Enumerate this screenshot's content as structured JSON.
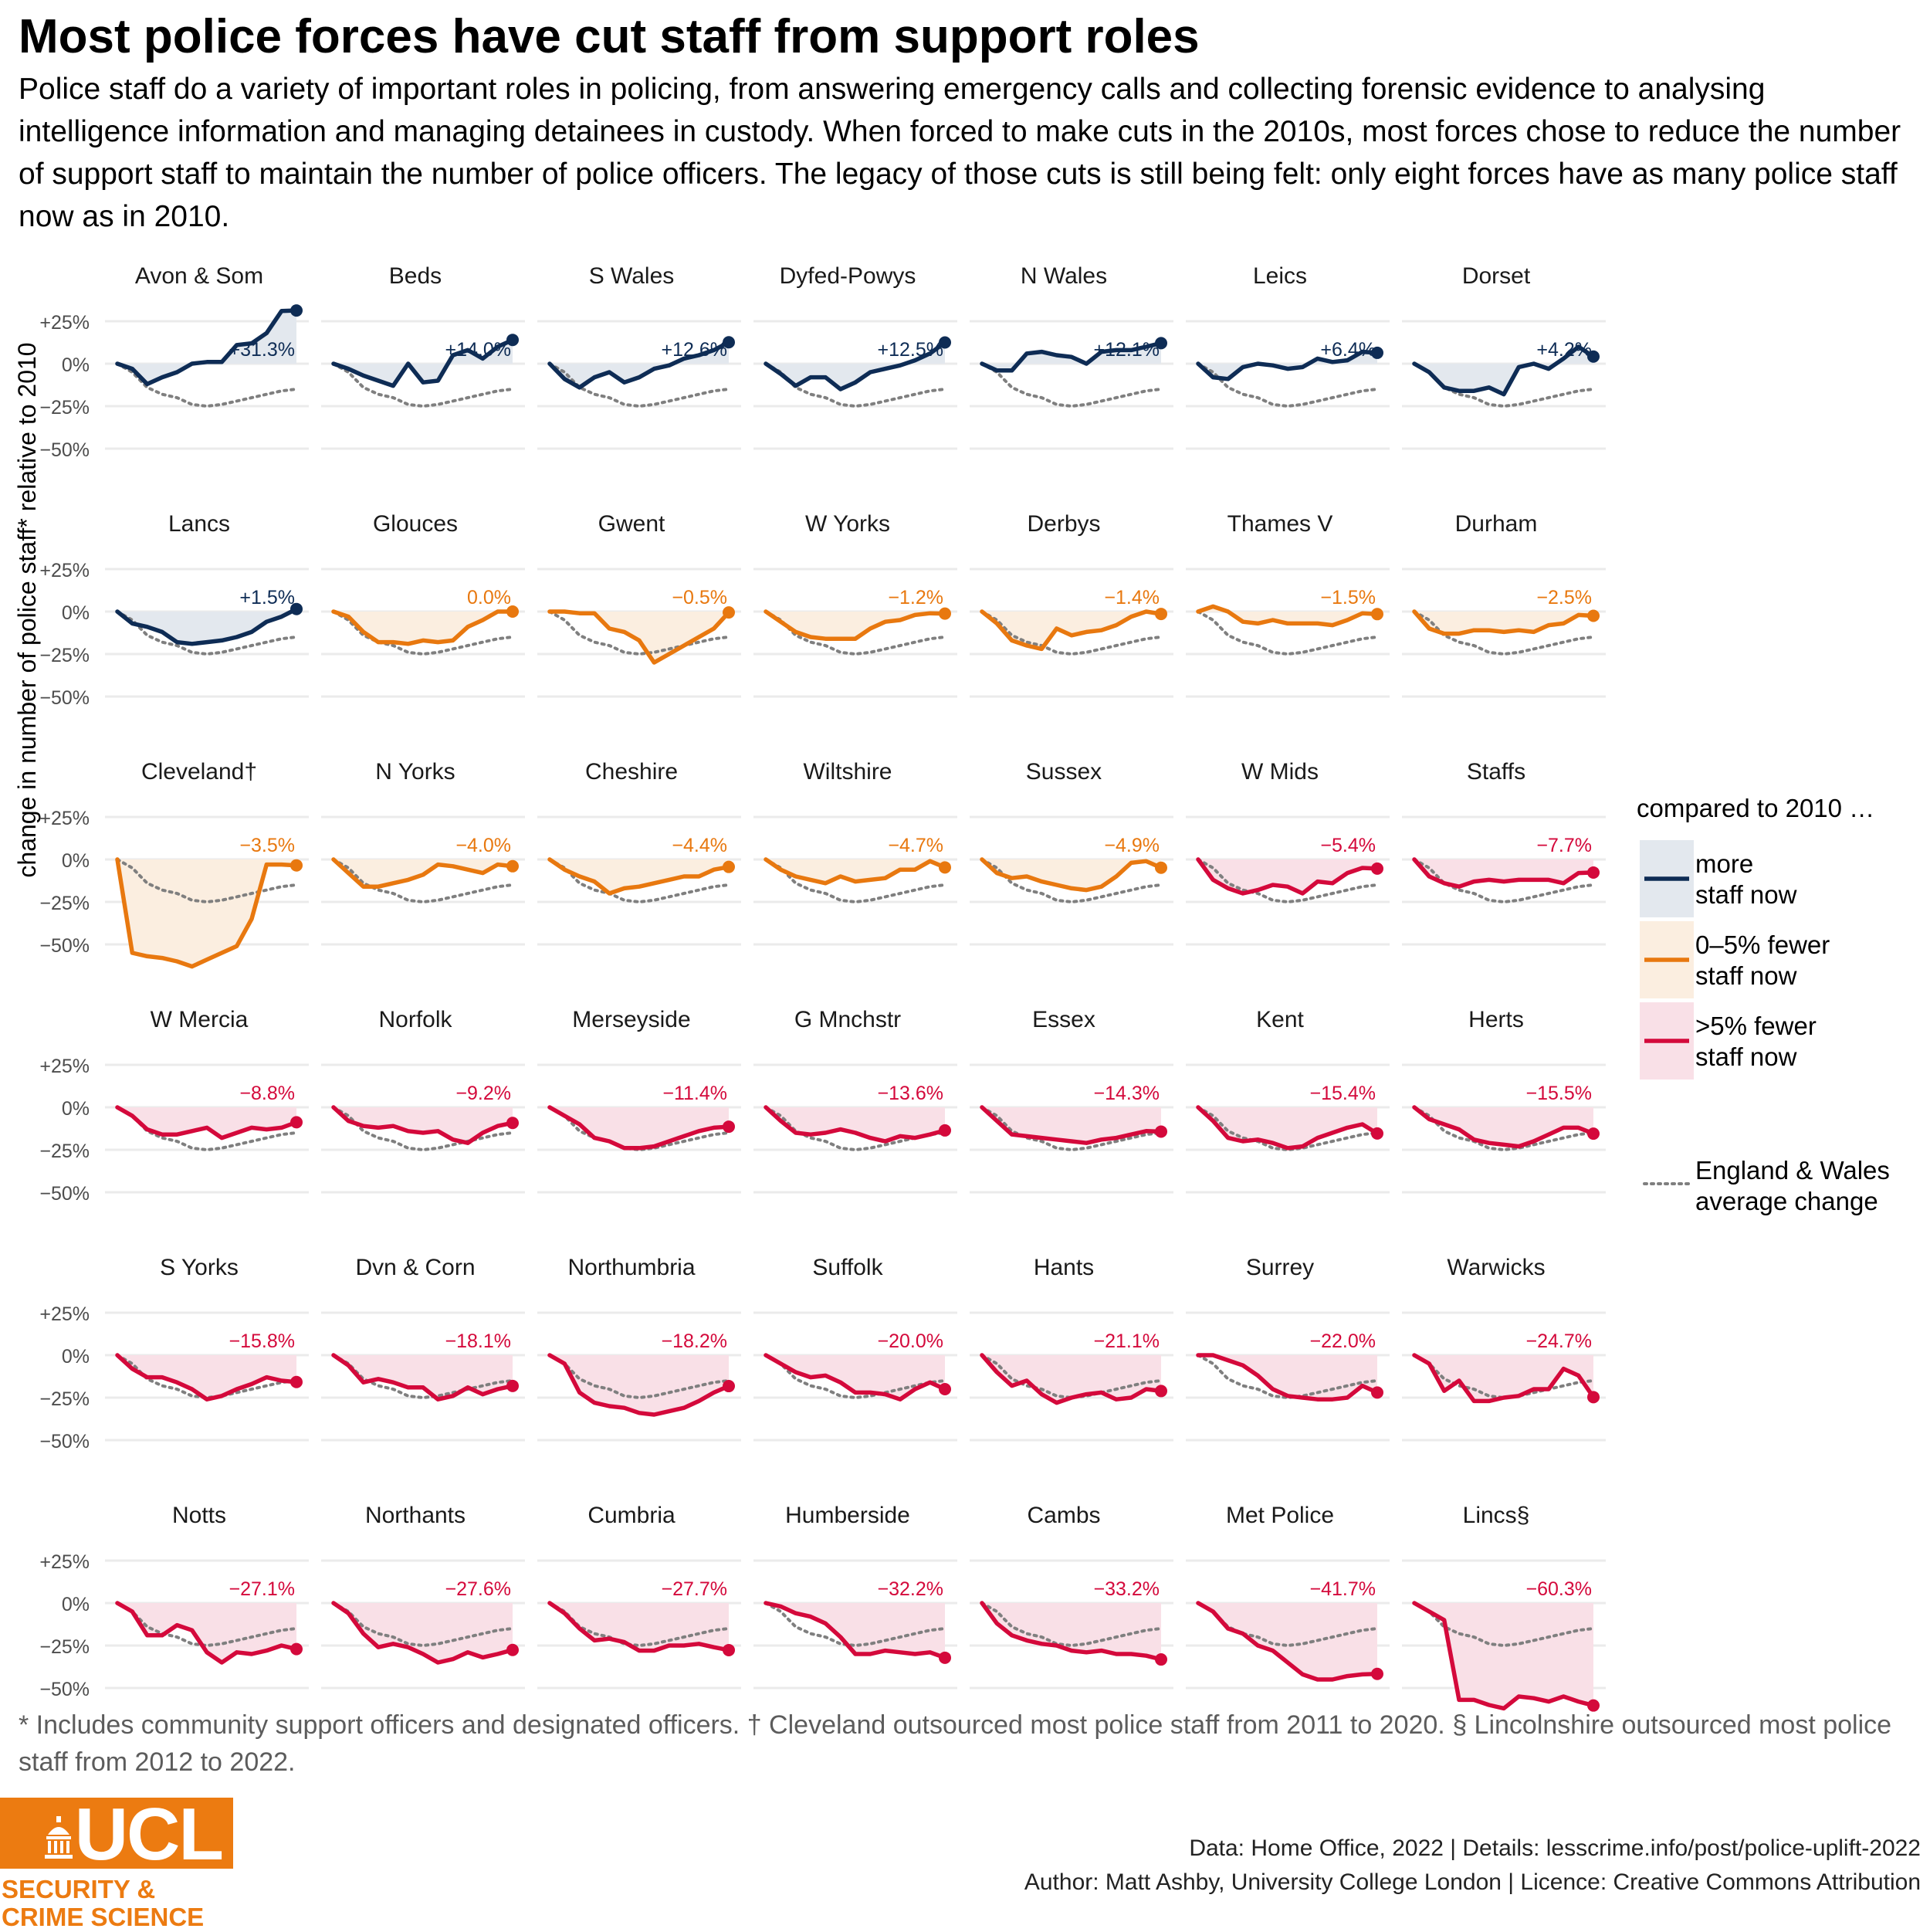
{
  "title": "Most police forces have cut staff from support roles",
  "subtitle": "Police staff do a variety of important roles in policing, from answering emergency calls and collecting forensic evidence to analysing intelligence information and managing detainees in custody. When forced to make cuts in the 2010s, most forces chose to reduce the number of support staff to maintain the number of police officers. The legacy of those cuts is still being felt: only eight forces have as many police staff now as in 2010.",
  "footnote": "* Includes community support officers and designated officers. † Cleveland outsourced most police staff from 2011 to 2020. § Lincolnshire outsourced most police staff from 2012 to 2022.",
  "credits": {
    "line1": "Data: Home Office, 2022 | Details: lesscrime.info/post/police-uplift-2022",
    "line2": "Author: Matt Ashby, University College London | Licence: Creative Commons Attribution"
  },
  "logo": {
    "word": "UCL",
    "line1": "SECURITY &",
    "line2": "CRIME SCIENCE",
    "dome_icon": "ucl-portico-icon"
  },
  "colors": {
    "more": "#0e2c55",
    "more_fill": "#e3e8ee",
    "mid": "#e8780f",
    "mid_fill": "#fbeee0",
    "less": "#d4093b",
    "less_fill": "#f9e0e7",
    "average": "#7f7f7f",
    "grid": "#ebebeb"
  },
  "chart_data": {
    "type": "line",
    "facets": "small multiples, 7 columns x 6 rows",
    "x": [
      "2010",
      "2011",
      "2012",
      "2013",
      "2014",
      "2015",
      "2016",
      "2017",
      "2018",
      "2019",
      "2020",
      "2021",
      "2022"
    ],
    "ylabel": "change in number of police staff* relative to 2010",
    "ylim": [
      -60,
      35
    ],
    "y_ticks": [
      25,
      0,
      -25,
      -50
    ],
    "y_tick_labels": [
      "+25%",
      "0%",
      "−25%",
      "−50%"
    ],
    "grid": true,
    "average": {
      "name": "England & Wales average change",
      "values": [
        0,
        -5,
        -14,
        -18,
        -20,
        -24,
        -25,
        -24,
        -22,
        -20,
        -18,
        -16,
        -15
      ]
    },
    "legend": {
      "title": "compared to 2010 …",
      "position": "right",
      "entries": [
        {
          "key": "more",
          "label_line1": "more",
          "label_line2": "staff now"
        },
        {
          "key": "mid",
          "label_line1": "0–5% fewer",
          "label_line2": "staff now"
        },
        {
          "key": "less",
          "label_line1": ">5% fewer",
          "label_line2": "staff now"
        }
      ],
      "average_label_line1": "England & Wales",
      "average_label_line2": "average change"
    },
    "series": [
      {
        "name": "Avon & Som",
        "group": "more",
        "label": "+31.3%",
        "values": [
          0,
          -3,
          -12,
          -8,
          -5,
          0,
          1,
          1,
          11,
          12,
          18,
          31,
          31.3
        ]
      },
      {
        "name": "Beds",
        "group": "more",
        "label": "+14.0%",
        "values": [
          0,
          -3,
          -7,
          -10,
          -13,
          0,
          -11,
          -10,
          5,
          8,
          3,
          10,
          14
        ]
      },
      {
        "name": "S Wales",
        "group": "more",
        "label": "+12.6%",
        "values": [
          0,
          -9,
          -14,
          -8,
          -5,
          -11,
          -8,
          -3,
          -1,
          3,
          5,
          8,
          12.6
        ]
      },
      {
        "name": "Dyfed-Powys",
        "group": "more",
        "label": "+12.5%",
        "values": [
          0,
          -6,
          -13,
          -8,
          -8,
          -15,
          -11,
          -5,
          -3,
          -1,
          2,
          6,
          12.5
        ]
      },
      {
        "name": "N Wales",
        "group": "more",
        "label": "+12.1%",
        "values": [
          0,
          -4,
          -4,
          6,
          7,
          5,
          4,
          0,
          7,
          8,
          8,
          10,
          12.1
        ]
      },
      {
        "name": "Leics",
        "group": "more",
        "label": "+6.4%",
        "values": [
          0,
          -8,
          -9,
          -2,
          0,
          -1,
          -3,
          -2,
          3,
          1,
          2,
          7,
          6.4
        ]
      },
      {
        "name": "Dorset",
        "group": "more",
        "label": "+4.2%",
        "values": [
          0,
          -5,
          -14,
          -16,
          -16,
          -14,
          -18,
          -2,
          0,
          -3,
          3,
          10,
          4.2
        ]
      },
      {
        "name": "Lancs",
        "group": "more",
        "label": "+1.5%",
        "values": [
          0,
          -7,
          -9,
          -12,
          -18,
          -19,
          -18,
          -17,
          -15,
          -12,
          -6,
          -3,
          1.5
        ]
      },
      {
        "name": "Glouces",
        "group": "mid",
        "label": "0.0%",
        "values": [
          0,
          -3,
          -12,
          -18,
          -18,
          -19,
          -17,
          -18,
          -17,
          -9,
          -5,
          0,
          0
        ]
      },
      {
        "name": "Gwent",
        "group": "mid",
        "label": "−0.5%",
        "values": [
          0,
          0,
          -1,
          -1,
          -10,
          -12,
          -17,
          -30,
          -25,
          -20,
          -15,
          -10,
          -0.5
        ]
      },
      {
        "name": "W Yorks",
        "group": "mid",
        "label": "−1.2%",
        "values": [
          0,
          -6,
          -12,
          -15,
          -16,
          -16,
          -16,
          -10,
          -6,
          -5,
          -2,
          -1,
          -1.2
        ]
      },
      {
        "name": "Derbys",
        "group": "mid",
        "label": "−1.4%",
        "values": [
          0,
          -7,
          -17,
          -20,
          -22,
          -10,
          -14,
          -12,
          -11,
          -8,
          -3,
          0,
          -1.4
        ]
      },
      {
        "name": "Thames V",
        "group": "mid",
        "label": "−1.5%",
        "values": [
          0,
          3,
          0,
          -6,
          -7,
          -5,
          -7,
          -7,
          -7,
          -8,
          -5,
          -1,
          -1.5
        ]
      },
      {
        "name": "Durham",
        "group": "mid",
        "label": "−2.5%",
        "values": [
          0,
          -10,
          -13,
          -13,
          -11,
          -11,
          -12,
          -11,
          -12,
          -8,
          -7,
          -2,
          -2.5
        ]
      },
      {
        "name": "Cleveland†",
        "group": "mid",
        "label": "−3.5%",
        "values": [
          0,
          -55,
          -57,
          -58,
          -60,
          -63,
          -59,
          -55,
          -51,
          -35,
          -3,
          -3,
          -3.5
        ]
      },
      {
        "name": "N Yorks",
        "group": "mid",
        "label": "−4.0%",
        "values": [
          0,
          -8,
          -16,
          -16,
          -14,
          -12,
          -9,
          -3,
          -4,
          -6,
          -8,
          -3,
          -4
        ]
      },
      {
        "name": "Cheshire",
        "group": "mid",
        "label": "−4.4%",
        "values": [
          0,
          -6,
          -10,
          -13,
          -20,
          -17,
          -16,
          -14,
          -12,
          -10,
          -10,
          -6,
          -4.4
        ]
      },
      {
        "name": "Wiltshire",
        "group": "mid",
        "label": "−4.7%",
        "values": [
          0,
          -6,
          -10,
          -12,
          -14,
          -10,
          -13,
          -12,
          -11,
          -6,
          -6,
          -1,
          -4.7
        ]
      },
      {
        "name": "Sussex",
        "group": "mid",
        "label": "−4.9%",
        "values": [
          0,
          -8,
          -11,
          -10,
          -13,
          -15,
          -17,
          -18,
          -16,
          -10,
          -2,
          -1,
          -4.9
        ]
      },
      {
        "name": "W Mids",
        "group": "less",
        "label": "−5.4%",
        "values": [
          0,
          -12,
          -17,
          -20,
          -18,
          -15,
          -16,
          -20,
          -13,
          -14,
          -8,
          -5,
          -5.4
        ]
      },
      {
        "name": "Staffs",
        "group": "less",
        "label": "−7.7%",
        "values": [
          0,
          -10,
          -14,
          -16,
          -13,
          -12,
          -13,
          -12,
          -12,
          -12,
          -14,
          -8,
          -7.7
        ]
      },
      {
        "name": "W Mercia",
        "group": "less",
        "label": "−8.8%",
        "values": [
          0,
          -5,
          -13,
          -16,
          -16,
          -14,
          -12,
          -18,
          -15,
          -12,
          -13,
          -12,
          -8.8
        ]
      },
      {
        "name": "Norfolk",
        "group": "less",
        "label": "−9.2%",
        "values": [
          0,
          -8,
          -11,
          -12,
          -11,
          -14,
          -15,
          -14,
          -19,
          -21,
          -15,
          -11,
          -9.2
        ]
      },
      {
        "name": "Merseyside",
        "group": "less",
        "label": "−11.4%",
        "values": [
          0,
          -5,
          -10,
          -18,
          -20,
          -24,
          -24,
          -23,
          -20,
          -17,
          -14,
          -12,
          -11.4
        ]
      },
      {
        "name": "G Mnchstr",
        "group": "less",
        "label": "−13.6%",
        "values": [
          0,
          -8,
          -15,
          -16,
          -15,
          -13,
          -15,
          -18,
          -20,
          -17,
          -18,
          -16,
          -13.6
        ]
      },
      {
        "name": "Essex",
        "group": "less",
        "label": "−14.3%",
        "values": [
          0,
          -8,
          -16,
          -17,
          -18,
          -19,
          -20,
          -21,
          -19,
          -18,
          -16,
          -14,
          -14.3
        ]
      },
      {
        "name": "Kent",
        "group": "less",
        "label": "−15.4%",
        "values": [
          0,
          -8,
          -18,
          -20,
          -19,
          -21,
          -24,
          -23,
          -18,
          -15,
          -12,
          -10,
          -15.4
        ]
      },
      {
        "name": "Herts",
        "group": "less",
        "label": "−15.5%",
        "values": [
          0,
          -7,
          -10,
          -13,
          -19,
          -21,
          -22,
          -23,
          -20,
          -16,
          -12,
          -12,
          -15.5
        ]
      },
      {
        "name": "S Yorks",
        "group": "less",
        "label": "−15.8%",
        "values": [
          0,
          -8,
          -13,
          -13,
          -16,
          -20,
          -26,
          -24,
          -20,
          -17,
          -13,
          -15,
          -15.8
        ]
      },
      {
        "name": "Dvn & Corn",
        "group": "less",
        "label": "−18.1%",
        "values": [
          0,
          -6,
          -16,
          -14,
          -16,
          -19,
          -19,
          -26,
          -24,
          -19,
          -23,
          -20,
          -18.1
        ]
      },
      {
        "name": "Northumbria",
        "group": "less",
        "label": "−18.2%",
        "values": [
          0,
          -5,
          -22,
          -28,
          -30,
          -31,
          -34,
          -35,
          -33,
          -31,
          -27,
          -22,
          -18.2
        ]
      },
      {
        "name": "Suffolk",
        "group": "less",
        "label": "−20.0%",
        "values": [
          0,
          -5,
          -10,
          -13,
          -12,
          -16,
          -22,
          -22,
          -23,
          -26,
          -20,
          -16,
          -20
        ]
      },
      {
        "name": "Hants",
        "group": "less",
        "label": "−21.1%",
        "values": [
          0,
          -10,
          -18,
          -15,
          -23,
          -28,
          -25,
          -23,
          -22,
          -26,
          -25,
          -20,
          -21.1
        ]
      },
      {
        "name": "Surrey",
        "group": "less",
        "label": "−22.0%",
        "values": [
          0,
          0,
          -3,
          -6,
          -12,
          -20,
          -24,
          -25,
          -26,
          -26,
          -25,
          -18,
          -22
        ]
      },
      {
        "name": "Warwicks",
        "group": "less",
        "label": "−24.7%",
        "values": [
          0,
          -5,
          -21,
          -15,
          -27,
          -27,
          -25,
          -24,
          -20,
          -20,
          -8,
          -12,
          -24.7
        ]
      },
      {
        "name": "Notts",
        "group": "less",
        "label": "−27.1%",
        "values": [
          0,
          -5,
          -19,
          -19,
          -13,
          -16,
          -29,
          -35,
          -29,
          -30,
          -28,
          -25,
          -27.1
        ]
      },
      {
        "name": "Northants",
        "group": "less",
        "label": "−27.6%",
        "values": [
          0,
          -6,
          -18,
          -26,
          -24,
          -26,
          -30,
          -35,
          -33,
          -29,
          -32,
          -30,
          -27.6
        ]
      },
      {
        "name": "Cumbria",
        "group": "less",
        "label": "−27.7%",
        "values": [
          0,
          -6,
          -15,
          -22,
          -21,
          -23,
          -28,
          -28,
          -25,
          -25,
          -24,
          -26,
          -27.7
        ]
      },
      {
        "name": "Humberside",
        "group": "less",
        "label": "−32.2%",
        "values": [
          0,
          -2,
          -6,
          -8,
          -12,
          -20,
          -30,
          -30,
          -28,
          -29,
          -30,
          -29,
          -32.2
        ]
      },
      {
        "name": "Cambs",
        "group": "less",
        "label": "−33.2%",
        "values": [
          0,
          -12,
          -19,
          -22,
          -24,
          -25,
          -28,
          -29,
          -28,
          -30,
          -30,
          -31,
          -33.2
        ]
      },
      {
        "name": "Met Police",
        "group": "less",
        "label": "−41.7%",
        "values": [
          0,
          -5,
          -15,
          -18,
          -25,
          -28,
          -35,
          -42,
          -45,
          -45,
          -43,
          -42,
          -41.7
        ]
      },
      {
        "name": "Lincs§",
        "group": "less",
        "label": "−60.3%",
        "values": [
          0,
          -5,
          -10,
          -57,
          -57,
          -60,
          -62,
          -55,
          -56,
          -58,
          -55,
          -58,
          -60.3
        ]
      }
    ]
  }
}
